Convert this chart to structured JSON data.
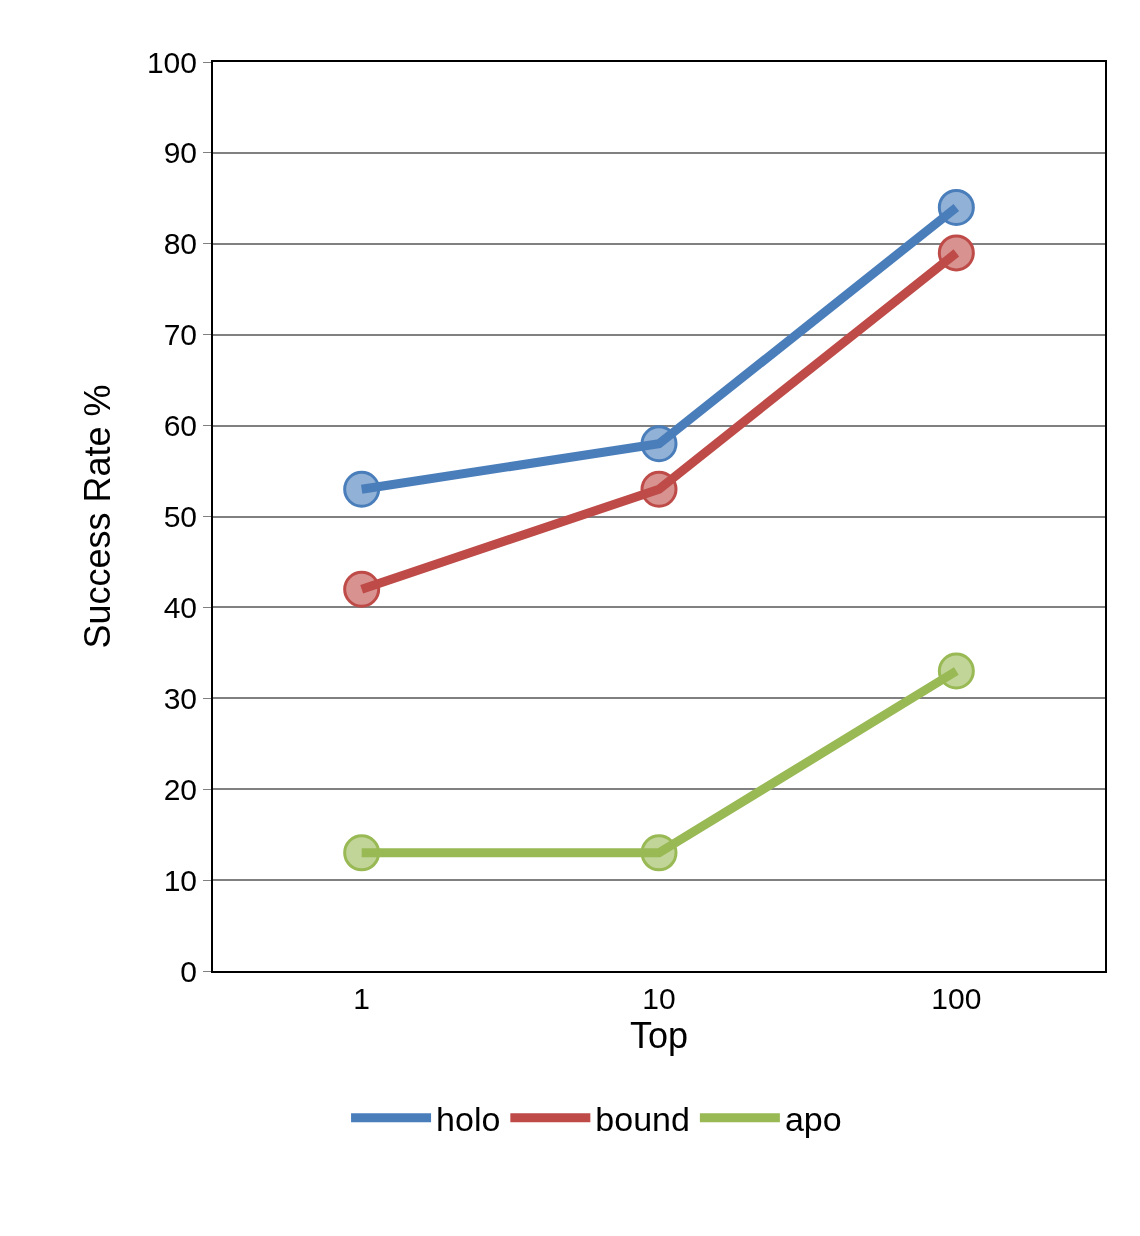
{
  "chart_data": {
    "type": "line",
    "xlabel": "Top",
    "ylabel": "Success Rate %",
    "categories": [
      "1",
      "10",
      "100"
    ],
    "series": [
      {
        "name": "holo",
        "color": "#4a7ebb",
        "values": [
          53,
          58,
          84
        ]
      },
      {
        "name": "bound",
        "color": "#be4b48",
        "values": [
          42,
          53,
          79
        ]
      },
      {
        "name": "apo",
        "color": "#98b954",
        "values": [
          13,
          13,
          33
        ]
      }
    ],
    "ylim": [
      0,
      100
    ],
    "yticks": [
      0,
      10,
      20,
      30,
      40,
      50,
      60,
      70,
      80,
      90,
      100
    ],
    "grid": "y",
    "legend": "bottom",
    "marker": "circle",
    "line_style": "solid"
  }
}
